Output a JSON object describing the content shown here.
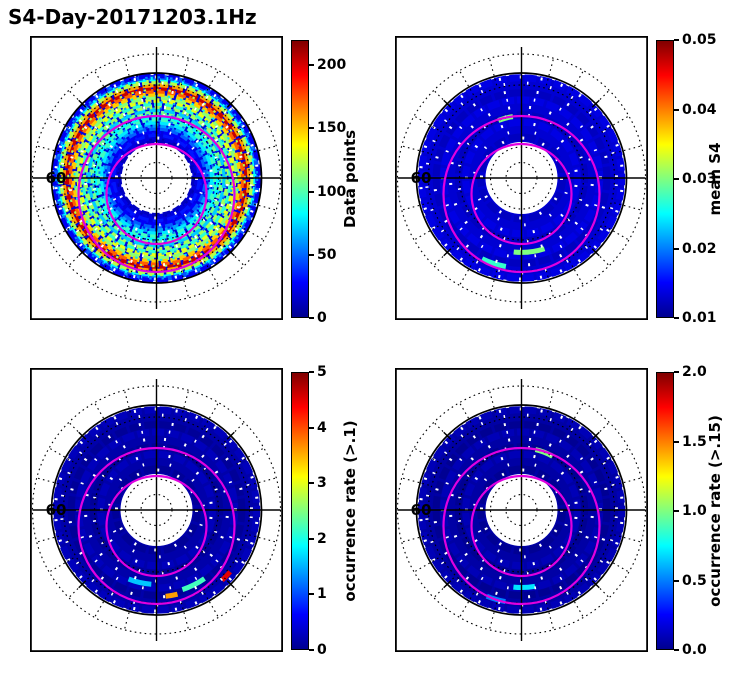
{
  "title": "S4-Day-20171203.1Hz",
  "lat_label": "60",
  "overlay_color": "#e000e0",
  "panels": [
    {
      "name": "data-points",
      "colorbar": {
        "label": "Data points",
        "min": 0,
        "max": 220,
        "ticks": [
          {
            "value": 0,
            "label": "0"
          },
          {
            "value": 50,
            "label": "50"
          },
          {
            "value": 100,
            "label": "100"
          },
          {
            "value": 150,
            "label": "150"
          },
          {
            "value": 200,
            "label": "200"
          }
        ]
      }
    },
    {
      "name": "mean-s4",
      "colorbar": {
        "label": "mean S4",
        "min": 0.01,
        "max": 0.05,
        "ticks": [
          {
            "value": 0.01,
            "label": "0.01"
          },
          {
            "value": 0.02,
            "label": "0.02"
          },
          {
            "value": 0.03,
            "label": "0.03"
          },
          {
            "value": 0.04,
            "label": "0.04"
          },
          {
            "value": 0.05,
            "label": "0.05"
          }
        ]
      }
    },
    {
      "name": "occurrence-rate-gt-0.1",
      "colorbar": {
        "label": "occurrence rate (>.1)",
        "min": 0,
        "max": 5,
        "ticks": [
          {
            "value": 0,
            "label": "0"
          },
          {
            "value": 1,
            "label": "1"
          },
          {
            "value": 2,
            "label": "2"
          },
          {
            "value": 3,
            "label": "3"
          },
          {
            "value": 4,
            "label": "4"
          },
          {
            "value": 5,
            "label": "5"
          }
        ]
      }
    },
    {
      "name": "occurrence-rate-gt-0.15",
      "colorbar": {
        "label": "occurrence rate (>.15)",
        "min": 0,
        "max": 2,
        "ticks": [
          {
            "value": 0,
            "label": "0.0"
          },
          {
            "value": 0.5,
            "label": "0.5"
          },
          {
            "value": 1,
            "label": "1.0"
          },
          {
            "value": 1.5,
            "label": "1.5"
          },
          {
            "value": 2,
            "label": "2.0"
          }
        ]
      }
    }
  ],
  "chart_data": [
    {
      "type": "heatmap",
      "projection": "polar",
      "quantity": "Data points",
      "colormap": "jet",
      "vmin": 0,
      "vmax": 220,
      "colorbar_ticks": [
        0,
        50,
        100,
        150,
        200
      ],
      "grid": {
        "latitude_circles_deg": [
          85,
          80,
          70,
          60,
          50
        ],
        "solid_circle_lat_deg": 55,
        "latitude_label": "60",
        "spoke_step_deg": 15
      },
      "rings": [
        {
          "lat": 78,
          "value": 12
        },
        {
          "lat": 77,
          "value": 20
        },
        {
          "lat": 76,
          "value": 32
        },
        {
          "lat": 75,
          "value": 26
        },
        {
          "lat": 74,
          "value": 48
        },
        {
          "lat": 73,
          "value": 62
        },
        {
          "lat": 72,
          "value": 78
        },
        {
          "lat": 71,
          "value": 96
        },
        {
          "lat": 70,
          "value": 82
        },
        {
          "lat": 69,
          "value": 108
        },
        {
          "lat": 68,
          "value": 72
        },
        {
          "lat": 67,
          "value": 118
        },
        {
          "lat": 66,
          "value": 92
        },
        {
          "lat": 65,
          "value": 132
        },
        {
          "lat": 64,
          "value": 112
        },
        {
          "lat": 63,
          "value": 148
        },
        {
          "lat": 62,
          "value": 172
        },
        {
          "lat": 61,
          "value": 205
        },
        {
          "lat": 60,
          "value": 158
        },
        {
          "lat": 59,
          "value": 122
        },
        {
          "lat": 58,
          "value": 82
        },
        {
          "lat": 57.5,
          "value": 46
        },
        {
          "lat": 57,
          "value": 24
        }
      ]
    },
    {
      "type": "heatmap",
      "projection": "polar",
      "quantity": "mean S4",
      "colormap": "jet",
      "vmin": 0.01,
      "vmax": 0.05,
      "colorbar_ticks": [
        0.01,
        0.02,
        0.03,
        0.04,
        0.05
      ],
      "background_value": 0.013,
      "hotspots": [
        {
          "lat": 66,
          "angle_start_deg": 72,
          "angle_end_deg": 96,
          "value": 0.03
        },
        {
          "lat": 61,
          "angle_start_deg": 100,
          "angle_end_deg": 116,
          "value": 0.027
        },
        {
          "lat": 70,
          "angle_start_deg": 248,
          "angle_end_deg": 262,
          "value": 0.03
        }
      ]
    },
    {
      "type": "heatmap",
      "projection": "polar",
      "quantity": "occurrence rate (>.1)",
      "colormap": "jet",
      "vmin": 0,
      "vmax": 5,
      "colorbar_ticks": [
        0,
        1,
        2,
        3,
        4,
        5
      ],
      "background_value": 0.15,
      "hotspots": [
        {
          "lat": 63,
          "angle_start_deg": 55,
          "angle_end_deg": 72,
          "value": 2.2
        },
        {
          "lat": 62,
          "angle_start_deg": 76,
          "angle_end_deg": 84,
          "value": 3.6
        },
        {
          "lat": 66,
          "angle_start_deg": 94,
          "angle_end_deg": 112,
          "value": 1.6
        },
        {
          "lat": 59,
          "angle_start_deg": 40,
          "angle_end_deg": 47,
          "value": 4.5
        }
      ]
    },
    {
      "type": "heatmap",
      "projection": "polar",
      "quantity": "occurrence rate (>.15)",
      "colormap": "jet",
      "vmin": 0,
      "vmax": 2,
      "colorbar_ticks": [
        0,
        0.5,
        1.0,
        1.5,
        2.0
      ],
      "background_value": 0.05,
      "hotspots": [
        {
          "lat": 70,
          "angle_start_deg": 283,
          "angle_end_deg": 300,
          "value": 1.0
        },
        {
          "lat": 65,
          "angle_start_deg": 80,
          "angle_end_deg": 96,
          "value": 0.7
        },
        {
          "lat": 60,
          "angle_start_deg": 100,
          "angle_end_deg": 112,
          "value": 0.5
        }
      ]
    }
  ]
}
